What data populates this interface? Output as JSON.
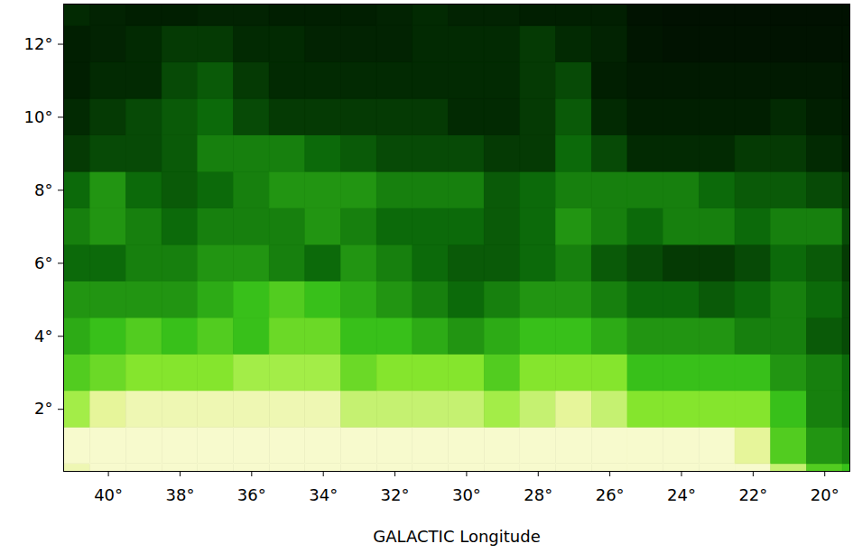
{
  "chart_data": {
    "type": "heatmap",
    "xlabel": "GALACTIC Longitude",
    "x": [
      41,
      40,
      39,
      38,
      37,
      36,
      35,
      34,
      33,
      32,
      31,
      30,
      29,
      28,
      27,
      26,
      25,
      24,
      23,
      22,
      21,
      20,
      19
    ],
    "y": [
      0,
      1,
      2,
      3,
      4,
      5,
      6,
      7,
      8,
      9,
      10,
      11,
      12,
      13
    ],
    "values": [
      [
        90,
        95,
        95,
        95,
        95,
        95,
        95,
        95,
        95,
        95,
        95,
        95,
        95,
        95,
        95,
        95,
        95,
        95,
        95,
        95,
        80,
        60,
        55
      ],
      [
        95,
        95,
        95,
        95,
        95,
        95,
        95,
        95,
        95,
        95,
        95,
        95,
        95,
        95,
        95,
        95,
        95,
        95,
        95,
        85,
        60,
        45,
        40
      ],
      [
        75,
        85,
        90,
        90,
        90,
        90,
        90,
        90,
        80,
        80,
        80,
        80,
        75,
        80,
        85,
        80,
        70,
        70,
        70,
        70,
        55,
        40,
        35
      ],
      [
        60,
        65,
        70,
        70,
        70,
        75,
        75,
        75,
        65,
        70,
        70,
        70,
        60,
        70,
        70,
        70,
        55,
        55,
        55,
        55,
        45,
        40,
        35
      ],
      [
        50,
        55,
        60,
        55,
        60,
        55,
        65,
        65,
        55,
        55,
        50,
        45,
        50,
        55,
        55,
        50,
        45,
        45,
        45,
        40,
        40,
        30,
        25
      ],
      [
        45,
        45,
        45,
        45,
        50,
        55,
        60,
        55,
        50,
        45,
        40,
        35,
        40,
        45,
        45,
        40,
        35,
        35,
        30,
        35,
        40,
        35,
        25
      ],
      [
        35,
        35,
        40,
        40,
        45,
        45,
        40,
        35,
        45,
        40,
        35,
        30,
        30,
        35,
        40,
        30,
        25,
        20,
        20,
        25,
        35,
        30,
        20
      ],
      [
        40,
        45,
        40,
        35,
        40,
        40,
        40,
        45,
        40,
        35,
        35,
        35,
        30,
        35,
        45,
        40,
        35,
        40,
        40,
        35,
        40,
        40,
        25
      ],
      [
        35,
        45,
        35,
        30,
        35,
        40,
        45,
        45,
        45,
        40,
        40,
        40,
        30,
        35,
        40,
        40,
        40,
        40,
        35,
        30,
        30,
        25,
        20
      ],
      [
        20,
        25,
        25,
        30,
        40,
        40,
        40,
        35,
        30,
        25,
        25,
        25,
        20,
        20,
        35,
        25,
        15,
        15,
        15,
        20,
        20,
        15,
        10
      ],
      [
        15,
        20,
        25,
        30,
        35,
        25,
        20,
        20,
        20,
        20,
        20,
        15,
        15,
        20,
        30,
        15,
        10,
        10,
        10,
        10,
        15,
        10,
        8
      ],
      [
        10,
        15,
        15,
        25,
        30,
        20,
        15,
        15,
        15,
        15,
        15,
        15,
        15,
        20,
        25,
        10,
        8,
        8,
        8,
        8,
        8,
        8,
        6
      ],
      [
        10,
        12,
        15,
        20,
        20,
        15,
        15,
        12,
        12,
        12,
        15,
        15,
        15,
        20,
        15,
        12,
        6,
        5,
        5,
        5,
        5,
        5,
        5
      ],
      [
        15,
        12,
        10,
        10,
        12,
        12,
        10,
        10,
        10,
        12,
        15,
        12,
        12,
        10,
        10,
        10,
        5,
        4,
        4,
        4,
        4,
        4,
        4
      ]
    ],
    "zlim": [
      0,
      100
    ],
    "xlim": [
      41.25,
      19.3
    ],
    "ylim": [
      0.3,
      13.1
    ],
    "xticks": [
      {
        "value": 40,
        "label": "40°"
      },
      {
        "value": 38,
        "label": "38°"
      },
      {
        "value": 36,
        "label": "36°"
      },
      {
        "value": 34,
        "label": "34°"
      },
      {
        "value": 32,
        "label": "32°"
      },
      {
        "value": 30,
        "label": "30°"
      },
      {
        "value": 28,
        "label": "28°"
      },
      {
        "value": 26,
        "label": "26°"
      },
      {
        "value": 24,
        "label": "24°"
      },
      {
        "value": 22,
        "label": "22°"
      },
      {
        "value": 20,
        "label": "20°"
      }
    ],
    "yticks": [
      {
        "value": 2,
        "label": "2°"
      },
      {
        "value": 4,
        "label": "4°"
      },
      {
        "value": 6,
        "label": "6°"
      },
      {
        "value": 8,
        "label": "8°"
      },
      {
        "value": 10,
        "label": "10°"
      },
      {
        "value": 12,
        "label": "12°"
      }
    ]
  }
}
